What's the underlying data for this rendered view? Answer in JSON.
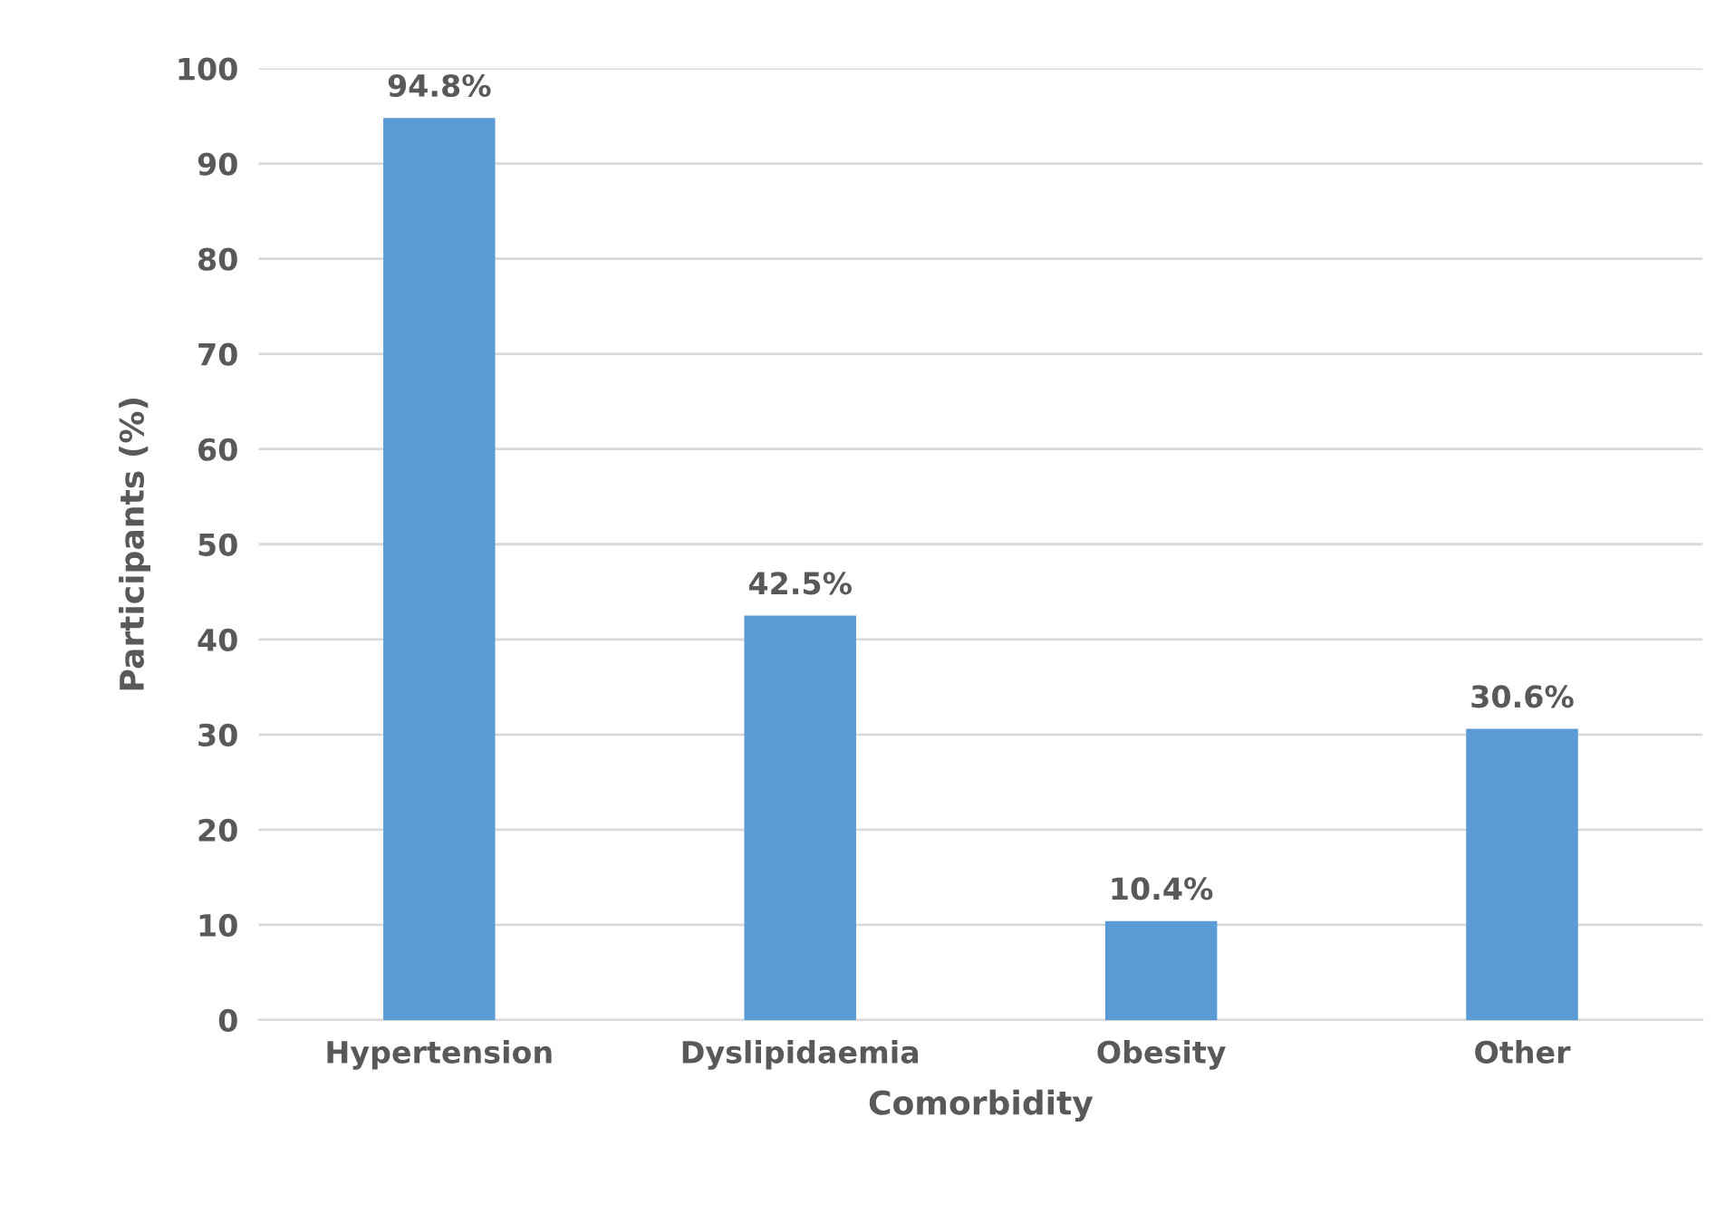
{
  "chart_data": {
    "type": "bar",
    "xlabel": "Comorbidity",
    "ylabel": "Participants (%)",
    "categories": [
      "Hypertension",
      "Dyslipidaemia",
      "Obesity",
      "Other"
    ],
    "values": [
      94.8,
      42.5,
      10.4,
      30.6
    ],
    "value_labels": [
      "94.8%",
      "42.5%",
      "10.4%",
      "30.6%"
    ],
    "color": "#5b9bd5",
    "ylim": [
      0,
      100
    ],
    "yticks": [
      0,
      10,
      20,
      30,
      40,
      50,
      60,
      70,
      80,
      90,
      100
    ],
    "grid": "y",
    "legend": false
  }
}
